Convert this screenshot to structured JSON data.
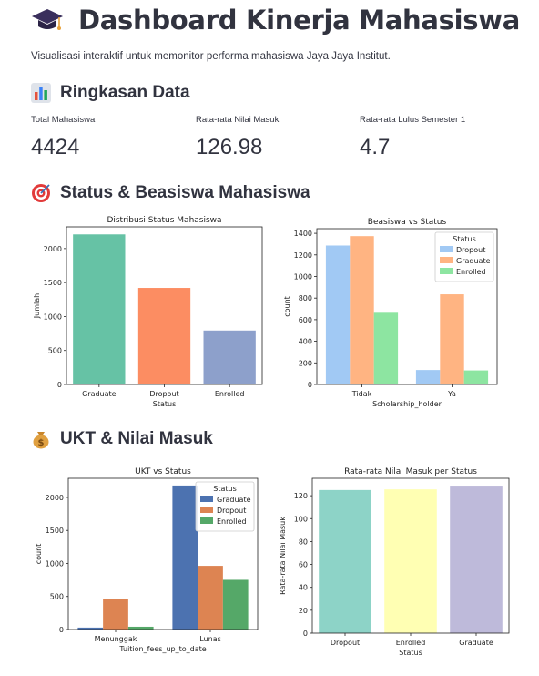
{
  "header": {
    "title": "Dashboard Kinerja Mahasiswa",
    "icon": "graduation-cap-icon",
    "description": "Visualisasi interaktif untuk memonitor performa mahasiswa Jaya Jaya Institut."
  },
  "sections": {
    "summary": {
      "title": "Ringkasan Data",
      "icon": "bar-chart-icon"
    },
    "status": {
      "title": "Status & Beasiswa Mahasiswa",
      "icon": "target-icon"
    },
    "ukt": {
      "title": "UKT & Nilai Masuk",
      "icon": "money-bag-icon"
    }
  },
  "metrics": [
    {
      "label": "Total Mahasiswa",
      "value": "4424"
    },
    {
      "label": "Rata-rata Nilai Masuk",
      "value": "126.98"
    },
    {
      "label": "Rata-rata Lulus Semester 1",
      "value": "4.7"
    }
  ],
  "chart_data": [
    {
      "id": "c1",
      "type": "bar",
      "title": "Distribusi Status Mahasiswa",
      "xlabel": "Status",
      "ylabel": "Jumlah",
      "categories": [
        "Graduate",
        "Dropout",
        "Enrolled"
      ],
      "values": [
        2209,
        1421,
        794
      ],
      "colors": [
        "#66c2a5",
        "#fc8d62",
        "#8da0cb"
      ],
      "ylim": [
        0,
        2320
      ],
      "yticks": [
        0,
        500,
        1000,
        1500,
        2000
      ],
      "grid": false
    },
    {
      "id": "c2",
      "type": "bar",
      "title": "Beasiswa vs Status",
      "xlabel": "Scholarship_holder",
      "ylabel": "count",
      "categories": [
        "Tidak",
        "Ya"
      ],
      "series": [
        {
          "name": "Dropout",
          "values": [
            1287,
            134
          ],
          "color": "#a1c9f4"
        },
        {
          "name": "Graduate",
          "values": [
            1374,
            835
          ],
          "color": "#ffb482"
        },
        {
          "name": "Enrolled",
          "values": [
            664,
            130
          ],
          "color": "#8de5a1"
        }
      ],
      "legend_title": "Status",
      "legend": "top-right",
      "ylim": [
        0,
        1443
      ],
      "yticks": [
        0,
        200,
        400,
        600,
        800,
        1000,
        1200,
        1400
      ],
      "grid": false
    },
    {
      "id": "c3",
      "type": "bar",
      "title": "UKT vs Status",
      "xlabel": "Tuition_fees_up_to_date",
      "ylabel": "count",
      "categories": [
        "Menunggak",
        "Lunas"
      ],
      "series": [
        {
          "name": "Graduate",
          "values": [
            29,
            2180
          ],
          "color": "#4c72b0"
        },
        {
          "name": "Dropout",
          "values": [
            457,
            964
          ],
          "color": "#dd8452"
        },
        {
          "name": "Enrolled",
          "values": [
            42,
            752
          ],
          "color": "#55a868"
        }
      ],
      "legend_title": "Status",
      "legend": "top-right",
      "ylim": [
        0,
        2289
      ],
      "yticks": [
        0,
        500,
        1000,
        1500,
        2000
      ],
      "grid": false
    },
    {
      "id": "c4",
      "type": "bar",
      "title": "Rata-rata Nilai Masuk per Status",
      "xlabel": "Status",
      "ylabel": "Rata-rata Nilai Masuk",
      "categories": [
        "Dropout",
        "Enrolled",
        "Graduate"
      ],
      "values": [
        124.96,
        125.53,
        128.79
      ],
      "colors": [
        "#8dd3c7",
        "#ffffb3",
        "#bebada"
      ],
      "ylim": [
        0,
        135.2
      ],
      "yticks": [
        0,
        20,
        40,
        60,
        80,
        100,
        120
      ],
      "grid": false
    }
  ]
}
